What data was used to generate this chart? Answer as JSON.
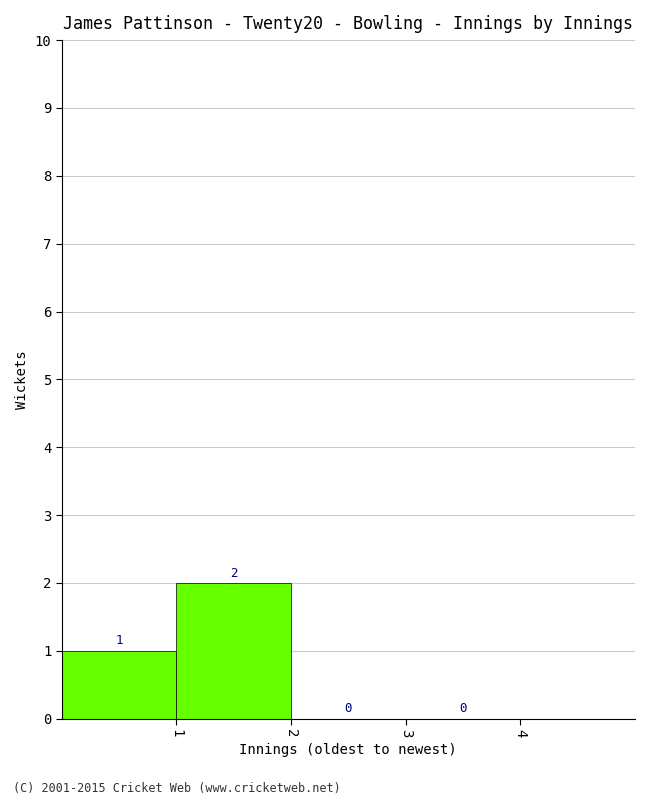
{
  "title": "James Pattinson - Twenty20 - Bowling - Innings by Innings",
  "xlabel": "Innings (oldest to newest)",
  "ylabel": "Wickets",
  "categories": [
    1,
    2,
    3,
    4
  ],
  "values": [
    1,
    2,
    0,
    0
  ],
  "bar_color": "#66ff00",
  "bar_edge_color": "#000000",
  "label_color": "#000080",
  "ylim": [
    0,
    10
  ],
  "yticks": [
    0,
    1,
    2,
    3,
    4,
    5,
    6,
    7,
    8,
    9,
    10
  ],
  "background_color": "#ffffff",
  "footer": "(C) 2001-2015 Cricket Web (www.cricketweb.net)",
  "title_fontsize": 12,
  "axis_label_fontsize": 10,
  "tick_fontsize": 10,
  "annotation_fontsize": 9,
  "xlim": [
    0,
    5
  ]
}
